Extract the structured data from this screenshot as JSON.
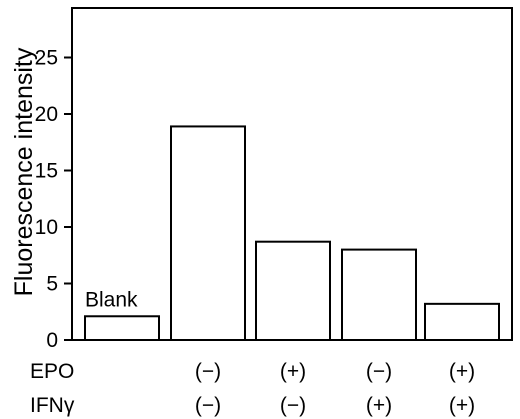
{
  "chart_data": {
    "type": "bar",
    "title": "",
    "xlabel": "",
    "ylabel": "Fluorescence intensity",
    "ylim": [
      0,
      30
    ],
    "yticks": [
      0,
      5,
      10,
      15,
      20,
      25
    ],
    "grid": false,
    "categories": [
      "Blank",
      "EPO(−) IFNγ(−)",
      "EPO(+) IFNγ(−)",
      "EPO(−) IFNγ(+)",
      "EPO(+) IFNγ(+)"
    ],
    "values": [
      2.1,
      18.9,
      8.7,
      8.0,
      3.2
    ],
    "annotations": [
      {
        "text": "Blank",
        "bar_index": 0
      }
    ],
    "condition_rows": [
      {
        "label": "EPO",
        "values": [
          "(−)",
          "(+)",
          "(−)",
          "(+)"
        ]
      },
      {
        "label": "IFNγ",
        "values": [
          "(−)",
          "(−)",
          "(+)",
          "(+)"
        ]
      }
    ]
  }
}
